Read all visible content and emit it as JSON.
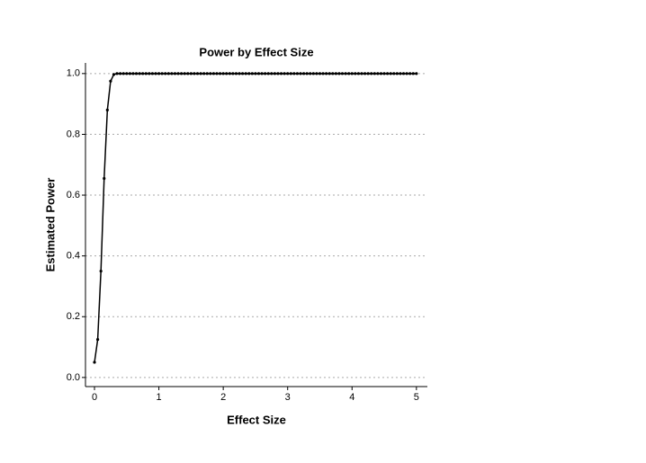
{
  "chart_data": {
    "type": "line",
    "title": "Power by Effect Size",
    "x_label": "Effect Size",
    "y_label": "Estimated Power",
    "x": [
      0,
      0.05,
      0.1,
      0.15,
      0.2,
      0.25,
      0.3,
      0.35,
      0.4,
      0.45,
      0.5,
      0.55,
      0.6,
      0.65,
      0.7,
      0.75,
      0.8,
      0.85,
      0.9,
      0.95,
      1,
      1.05,
      1.1,
      1.15,
      1.2,
      1.25,
      1.3,
      1.35,
      1.4,
      1.45,
      1.5,
      1.55,
      1.6,
      1.65,
      1.7,
      1.75,
      1.8,
      1.85,
      1.9,
      1.95,
      2,
      2.05,
      2.1,
      2.15,
      2.2,
      2.25,
      2.3,
      2.35,
      2.4,
      2.45,
      2.5,
      2.55,
      2.6,
      2.65,
      2.7,
      2.75,
      2.8,
      2.85,
      2.9,
      2.95,
      3,
      3.05,
      3.1,
      3.15,
      3.2,
      3.25,
      3.3,
      3.35,
      3.4,
      3.45,
      3.5,
      3.55,
      3.6,
      3.65,
      3.7,
      3.75,
      3.8,
      3.85,
      3.9,
      3.95,
      4,
      4.05,
      4.1,
      4.15,
      4.2,
      4.25,
      4.3,
      4.35,
      4.4,
      4.45,
      4.5,
      4.55,
      4.6,
      4.65,
      4.7,
      4.75,
      4.8,
      4.85,
      4.9,
      4.95,
      5
    ],
    "series": [
      {
        "name": "Estimated Power",
        "color": "#000000",
        "values": [
          0.05,
          0.125,
          0.35,
          0.655,
          0.88,
          0.975,
          0.997,
          1,
          1,
          1,
          1,
          1,
          1,
          1,
          1,
          1,
          1,
          1,
          1,
          1,
          1,
          1,
          1,
          1,
          1,
          1,
          1,
          1,
          1,
          1,
          1,
          1,
          1,
          1,
          1,
          1,
          1,
          1,
          1,
          1,
          1,
          1,
          1,
          1,
          1,
          1,
          1,
          1,
          1,
          1,
          1,
          1,
          1,
          1,
          1,
          1,
          1,
          1,
          1,
          1,
          1,
          1,
          1,
          1,
          1,
          1,
          1,
          1,
          1,
          1,
          1,
          1,
          1,
          1,
          1,
          1,
          1,
          1,
          1,
          1,
          1,
          1,
          1,
          1,
          1,
          1,
          1,
          1,
          1,
          1,
          1,
          1,
          1,
          1,
          1,
          1,
          1,
          1,
          1,
          1,
          1
        ]
      }
    ],
    "xlim": [
      -0.14,
      5.17
    ],
    "ylim": [
      -0.03,
      1.035
    ],
    "xticks": [
      0,
      1,
      2,
      3,
      4,
      5
    ],
    "yticks": [
      {
        "value": 0,
        "label": "0.0"
      },
      {
        "value": 0.2,
        "label": "0.2"
      },
      {
        "value": 0.4,
        "label": "0.4"
      },
      {
        "value": 0.6,
        "label": "0.6"
      },
      {
        "value": 0.8,
        "label": "0.8"
      },
      {
        "value": 1,
        "label": "1.0"
      }
    ],
    "grid": true
  }
}
